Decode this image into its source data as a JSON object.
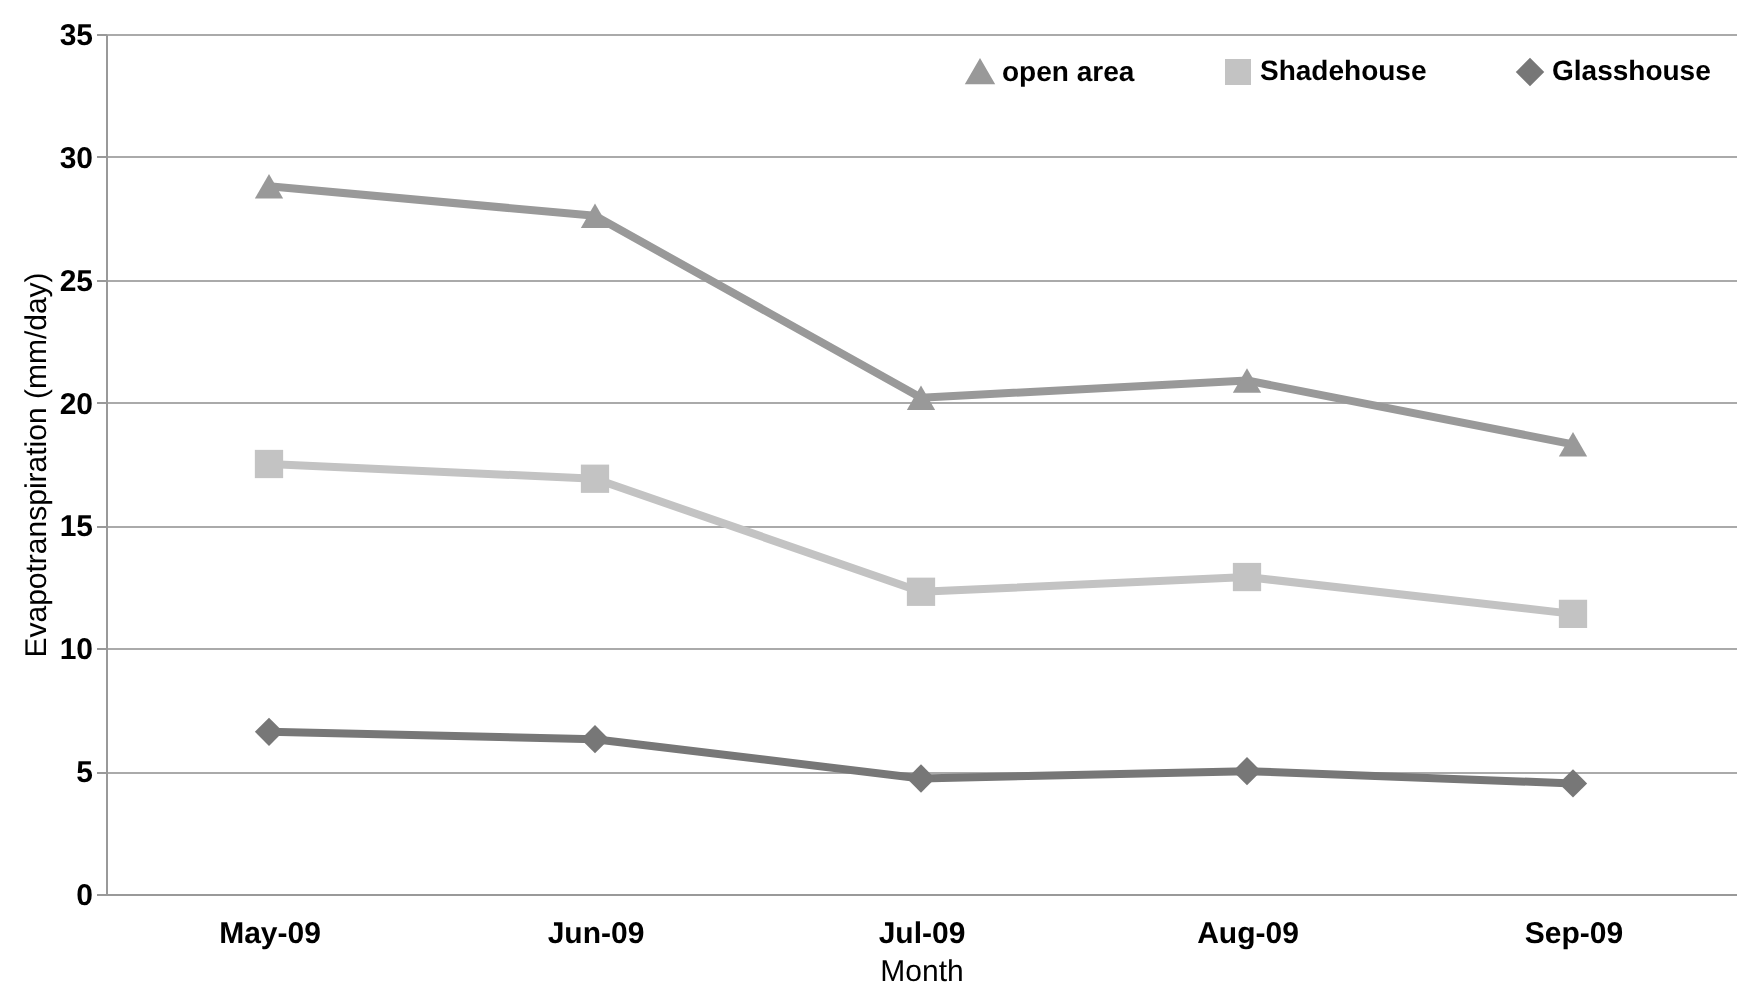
{
  "chart_data": {
    "type": "line",
    "xlabel": "Month",
    "ylabel": "Evapotranspiration (mm/day)",
    "categories": [
      "May-09",
      "Jun-09",
      "Jul-09",
      "Aug-09",
      "Sep-09"
    ],
    "series": [
      {
        "name": "open area",
        "color": "#999999",
        "marker": "triangle",
        "values": [
          28.8,
          27.6,
          20.2,
          20.9,
          18.3
        ]
      },
      {
        "name": "Shadehouse",
        "color": "#c3c3c3",
        "marker": "square",
        "values": [
          17.5,
          16.9,
          12.3,
          12.9,
          11.4
        ]
      },
      {
        "name": "Glasshouse",
        "color": "#777777",
        "marker": "diamond",
        "values": [
          6.6,
          6.3,
          4.7,
          5.0,
          4.5
        ]
      }
    ],
    "ylim": [
      0,
      35
    ],
    "yticks": [
      0,
      5,
      10,
      15,
      20,
      25,
      30,
      35
    ],
    "grid": "y",
    "legend": "top right",
    "line_style": "solid"
  }
}
